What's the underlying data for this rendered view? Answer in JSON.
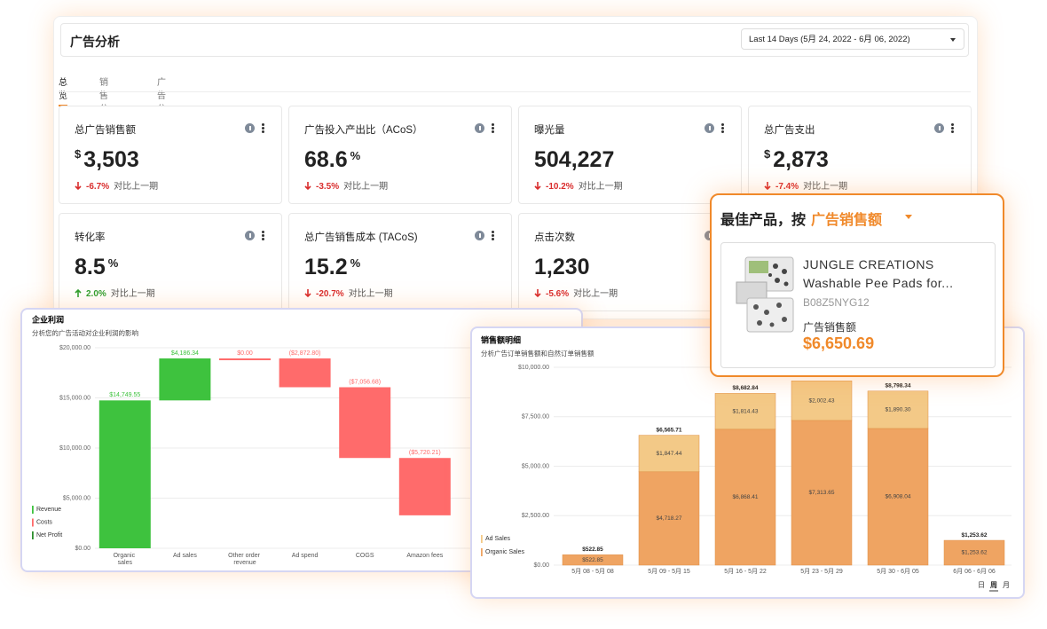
{
  "dashboard": {
    "title": "广告分析",
    "date_range": "Last 14 Days (5月 24, 2022 - 6月 06, 2022)",
    "tabs": [
      "总览",
      "销售分析",
      "广告分析"
    ],
    "active_tab": 0,
    "kpis": [
      {
        "title": "总广告销售额",
        "prefix": "$",
        "value": "3,503",
        "change": "-6.7%",
        "compare": "对比上一期"
      },
      {
        "title": "广告投入产出比（ACoS）",
        "value": "68.6",
        "suffix": "%",
        "change": "-3.5%",
        "compare": "对比上一期"
      },
      {
        "title": "曝光量",
        "value": "504,227",
        "change": "-10.2%",
        "compare": "对比上一期"
      },
      {
        "title": "总广告支出",
        "prefix": "$",
        "value": "2,873",
        "change": "-7.4%",
        "compare": "对比上一期"
      },
      {
        "title": "转化率",
        "value": "8.5",
        "suffix": "%",
        "change": "2.0%",
        "compare": "对比上一期"
      },
      {
        "title": "总广告销售成本 (TACoS)",
        "value": "15.2",
        "suffix": "%",
        "change": "-20.7%",
        "compare": "对比上一期"
      },
      {
        "title": "点击次数",
        "value": "1,230",
        "change": "-5.6%",
        "compare": "对比上一期"
      }
    ]
  },
  "chart_data": [
    {
      "type": "waterfall",
      "title": "企业利润",
      "subtitle": "分析您的广告活动对企业利润的影响",
      "categories": [
        "Organic sales",
        "Ad sales",
        "Other order revenue",
        "Ad spend",
        "COGS",
        "Amazon fees"
      ],
      "values": [
        14749.55,
        4186.34,
        0,
        -2872.8,
        -7056.68,
        -5720.21
      ],
      "value_labels": [
        "$14,749.55",
        "$4,186.34",
        "$0.00",
        "($2,872.80)",
        "($7,056.68)",
        "($5,720.21)"
      ],
      "ylim": [
        0,
        20000
      ],
      "yticks": [
        {
          "value": 0,
          "label": "$0.00"
        },
        {
          "value": 5000,
          "label": "$5,000.00"
        },
        {
          "value": 10000,
          "label": "$10,000.00"
        },
        {
          "value": 15000,
          "label": "$15,000.00"
        },
        {
          "value": 20000,
          "label": "$20,000.00"
        }
      ],
      "increase_color": "#3ec23e",
      "decrease_color": "#ff6b6b",
      "grid": true,
      "legend": [
        {
          "name": "Revenue",
          "color": "#3ec23e"
        },
        {
          "name": "Costs",
          "color": "#ff6b6b"
        },
        {
          "name": "Net Profit",
          "color": "#2e8f2e"
        }
      ]
    },
    {
      "type": "stacked_bar",
      "title": "销售额明细",
      "subtitle": "分析广告订单销售额和自然订单销售额",
      "categories": [
        "5月 08 - 5月 08",
        "5月 09 - 5月 15",
        "5月 16 - 5月 22",
        "5月 23 - 5月 29",
        "5月 30 - 6月 05",
        "6月 06 - 6月 06"
      ],
      "series": [
        {
          "name": "Ad Sales",
          "color": "#f3c987",
          "values": [
            null,
            1847.44,
            1814.43,
            2002.43,
            1890.3,
            null
          ],
          "value_labels": [
            null,
            "$1,847.44",
            "$1,814.43",
            "$2,002.43",
            "$1,890.30",
            null
          ]
        },
        {
          "name": "Organic Sales",
          "color": "#efa462",
          "values": [
            522.85,
            4718.27,
            6868.41,
            7313.65,
            6908.04,
            1253.62
          ],
          "value_labels": [
            "$522.85",
            "$4,718.27",
            "$6,868.41",
            "$7,313.65",
            "$6,908.04",
            "$1,253.62"
          ]
        }
      ],
      "totals": {
        "values": [
          522.85,
          6565.71,
          8682.84,
          null,
          8798.34,
          1253.62
        ],
        "value_labels": [
          "$522.85",
          "$6,565.71",
          "$8,682.84",
          null,
          "$8,798.34",
          "$1,253.62"
        ]
      },
      "ylim": [
        0,
        10000
      ],
      "yticks": [
        {
          "value": 0,
          "label": "$0.00"
        },
        {
          "value": 2500,
          "label": "$2,500.00"
        },
        {
          "value": 5000,
          "label": "$5,000.00"
        },
        {
          "value": 7500,
          "label": "$7,500.00"
        },
        {
          "value": 10000,
          "label": "$10,000.00"
        }
      ],
      "grid": true,
      "periods": [
        "日",
        "周",
        "月"
      ],
      "active_period": 1
    }
  ],
  "best_product": {
    "title": "最佳产品，按",
    "metric": "广告销售额",
    "brand": "JUNGLE CREATIONS",
    "name": "Washable Pee Pads for...",
    "asin": "B08Z5NYG12",
    "value_label": "广告销售额",
    "value": "$6,650.69"
  }
}
